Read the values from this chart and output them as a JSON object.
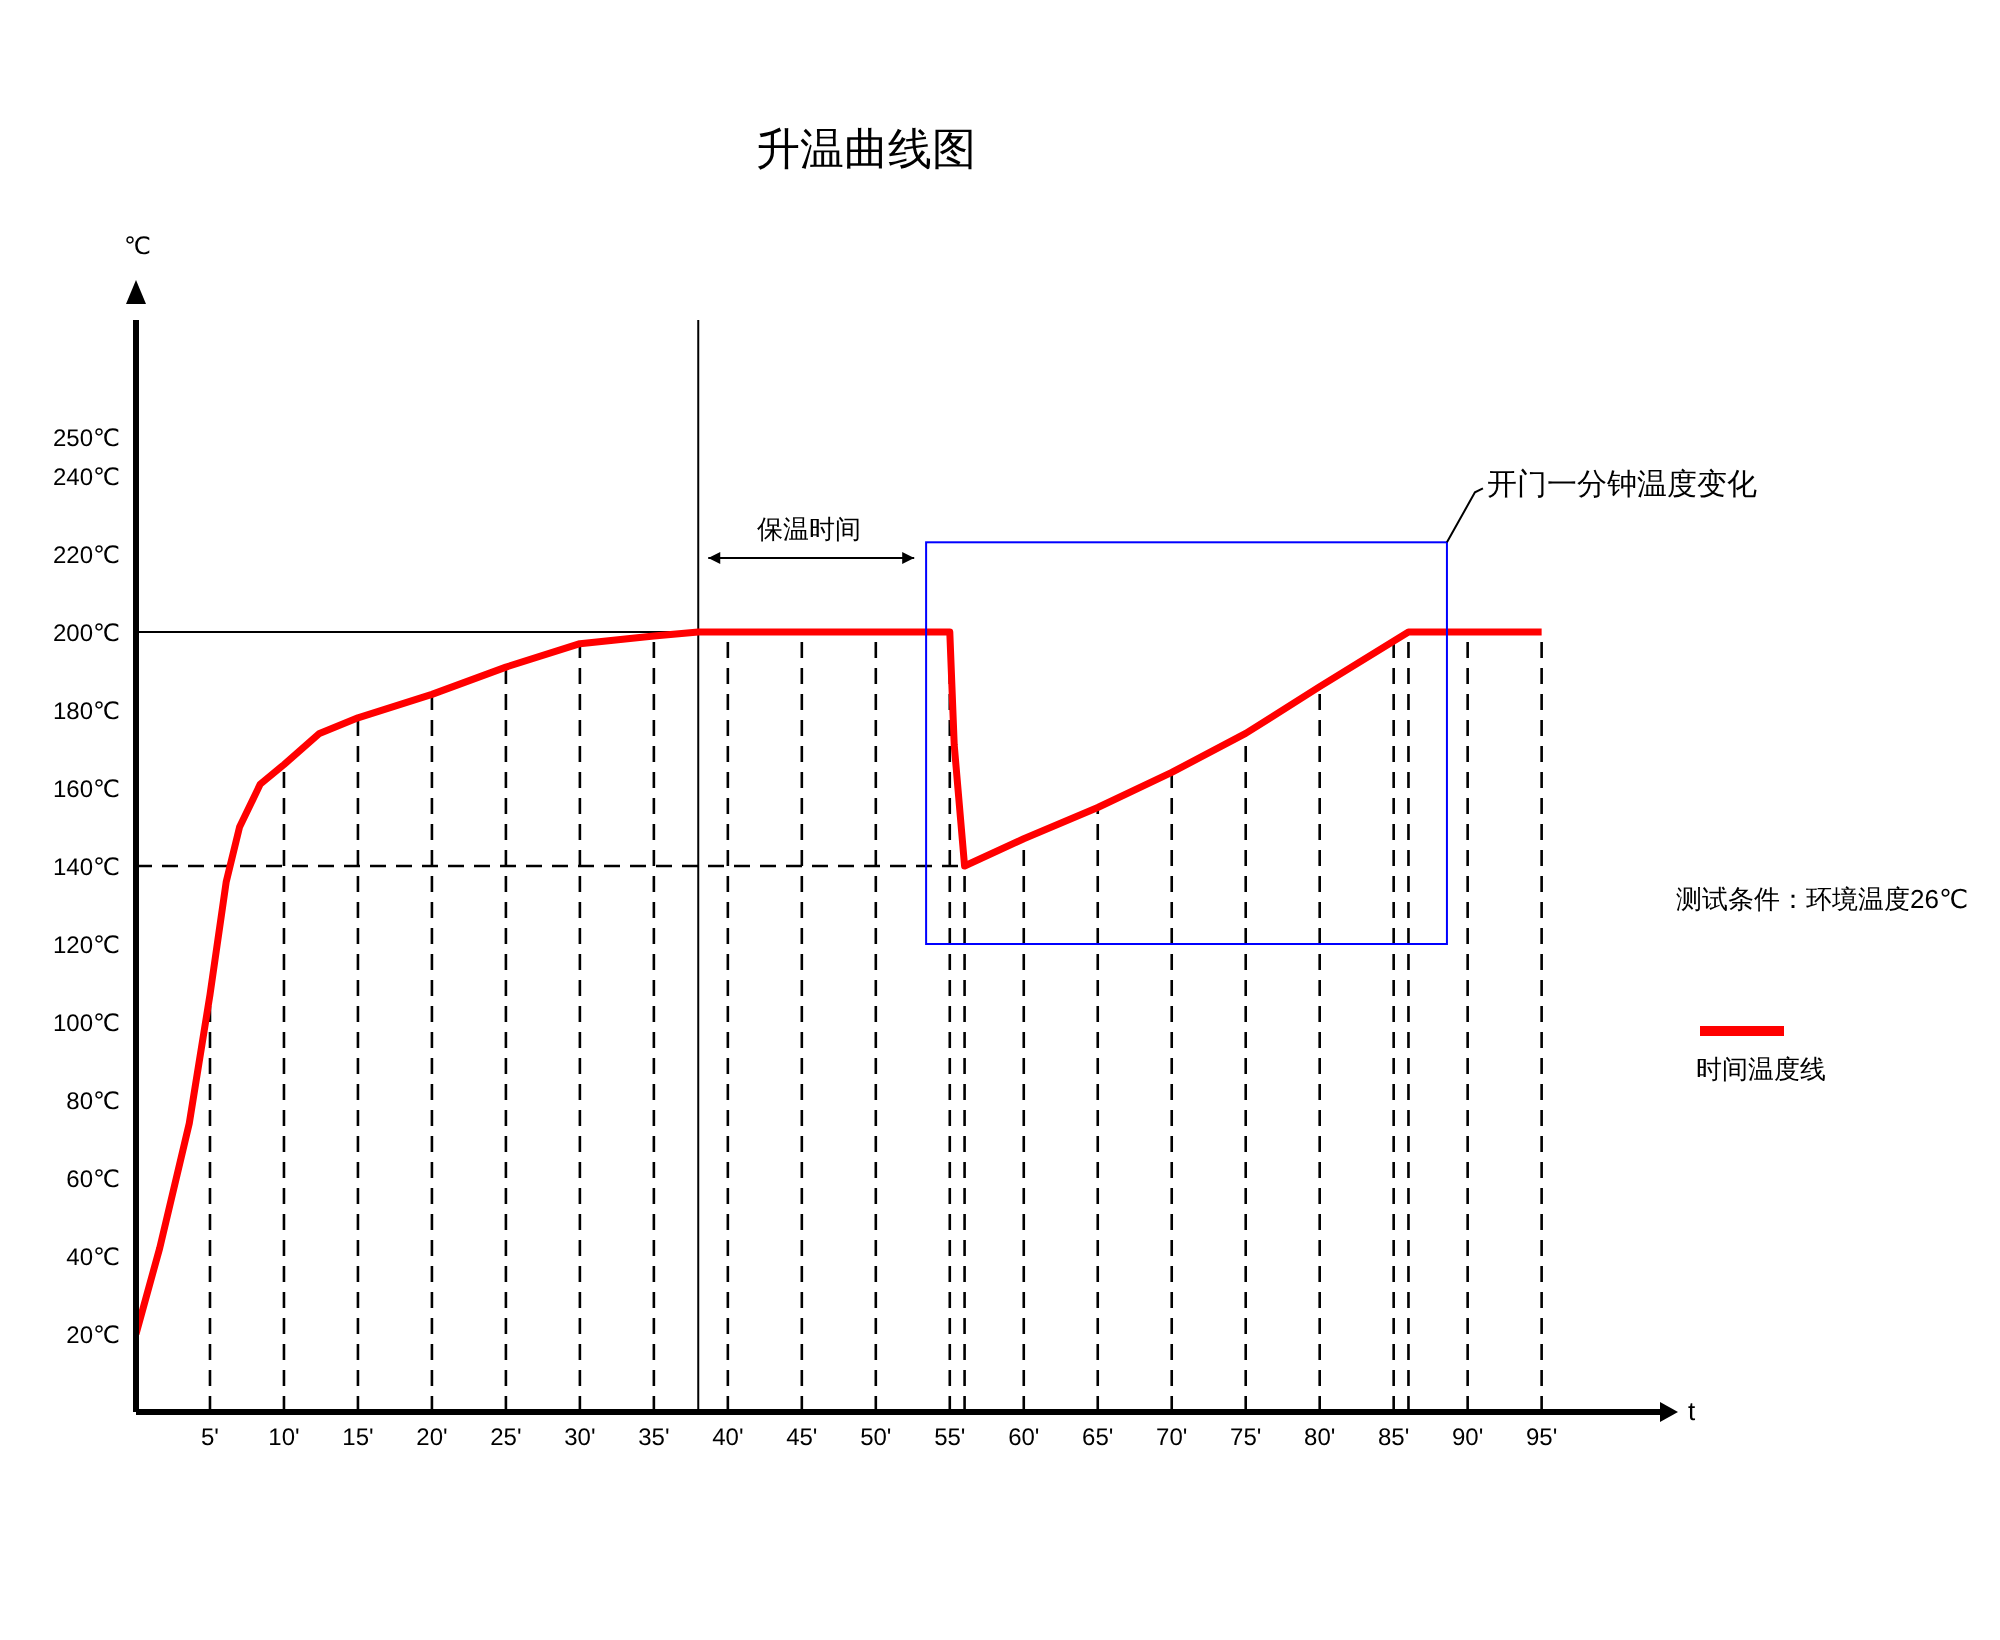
{
  "chart_data": {
    "type": "line",
    "title": "升温曲线图",
    "xlabel": "t",
    "ylabel": "℃",
    "x": [
      0,
      1.6,
      3.6,
      5,
      6.1,
      7,
      8.4,
      10,
      12.4,
      15,
      20,
      25,
      30,
      35,
      38,
      55,
      55.3,
      56,
      60,
      65,
      70,
      75,
      80,
      86,
      95
    ],
    "series": [
      {
        "name": "时间温度线",
        "color": "#ff0000",
        "values": [
          20,
          42,
          74,
          107,
          136,
          150,
          161,
          166,
          174,
          178,
          184,
          191,
          197,
          199,
          200,
          200,
          171,
          140,
          147,
          155,
          164,
          174,
          186,
          200,
          200
        ]
      }
    ],
    "xlim": [
      0,
      103
    ],
    "ylim": [
      0,
      280
    ],
    "xticks": [
      {
        "value": 5,
        "label": "5'"
      },
      {
        "value": 10,
        "label": "10'"
      },
      {
        "value": 15,
        "label": "15'"
      },
      {
        "value": 20,
        "label": "20'"
      },
      {
        "value": 25,
        "label": "25'"
      },
      {
        "value": 30,
        "label": "30'"
      },
      {
        "value": 35,
        "label": "35'"
      },
      {
        "value": 40,
        "label": "40'"
      },
      {
        "value": 45,
        "label": "45'"
      },
      {
        "value": 50,
        "label": "50'"
      },
      {
        "value": 55,
        "label": "55'"
      },
      {
        "value": 60,
        "label": "60'"
      },
      {
        "value": 65,
        "label": "65'"
      },
      {
        "value": 70,
        "label": "70'"
      },
      {
        "value": 75,
        "label": "75'"
      },
      {
        "value": 80,
        "label": "80'"
      },
      {
        "value": 85,
        "label": "85'"
      },
      {
        "value": 90,
        "label": "90'"
      },
      {
        "value": 95,
        "label": "95'"
      }
    ],
    "yticks": [
      {
        "value": 20,
        "label": "20℃"
      },
      {
        "value": 40,
        "label": "40℃"
      },
      {
        "value": 60,
        "label": "60℃"
      },
      {
        "value": 80,
        "label": "80℃"
      },
      {
        "value": 100,
        "label": "100℃"
      },
      {
        "value": 120,
        "label": "120℃"
      },
      {
        "value": 140,
        "label": "140℃"
      },
      {
        "value": 160,
        "label": "160℃"
      },
      {
        "value": 180,
        "label": "180℃"
      },
      {
        "value": 200,
        "label": "200℃"
      },
      {
        "value": 220,
        "label": "220℃"
      },
      {
        "value": 240,
        "label": "240℃"
      },
      {
        "value": 250,
        "label": "250℃"
      }
    ],
    "ref_lines": [
      {
        "axis": "x",
        "value": 5,
        "line_style": "dashed"
      },
      {
        "axis": "x",
        "value": 10,
        "line_style": "dashed"
      },
      {
        "axis": "x",
        "value": 15,
        "line_style": "dashed"
      },
      {
        "axis": "x",
        "value": 20,
        "line_style": "dashed"
      },
      {
        "axis": "x",
        "value": 25,
        "line_style": "dashed"
      },
      {
        "axis": "x",
        "value": 30,
        "line_style": "dashed"
      },
      {
        "axis": "x",
        "value": 35,
        "line_style": "dashed"
      },
      {
        "axis": "x",
        "value": 38,
        "line_style": "solid"
      },
      {
        "axis": "x",
        "value": 40,
        "line_style": "dashed"
      },
      {
        "axis": "x",
        "value": 45,
        "line_style": "dashed"
      },
      {
        "axis": "x",
        "value": 50,
        "line_style": "dashed"
      },
      {
        "axis": "x",
        "value": 55,
        "line_style": "dashed"
      },
      {
        "axis": "x",
        "value": 56,
        "line_style": "dashed"
      },
      {
        "axis": "x",
        "value": 60,
        "line_style": "dashed"
      },
      {
        "axis": "x",
        "value": 65,
        "line_style": "dashed"
      },
      {
        "axis": "x",
        "value": 70,
        "line_style": "dashed"
      },
      {
        "axis": "x",
        "value": 75,
        "line_style": "dashed"
      },
      {
        "axis": "x",
        "value": 80,
        "line_style": "dashed"
      },
      {
        "axis": "x",
        "value": 85,
        "line_style": "dashed"
      },
      {
        "axis": "x",
        "value": 86,
        "line_style": "dashed"
      },
      {
        "axis": "x",
        "value": 90,
        "line_style": "dashed"
      },
      {
        "axis": "x",
        "value": 95,
        "line_style": "dashed"
      },
      {
        "axis": "y",
        "value": 200,
        "line_style": "solid"
      },
      {
        "axis": "y",
        "value": 140,
        "line_style": "dashed"
      }
    ],
    "annotations": [
      "保温时间",
      "开门一分钟温度变化",
      "测试条件：环境温度26℃"
    ],
    "grid": false,
    "legend": "right",
    "marker": "none",
    "line_style": "solid"
  }
}
